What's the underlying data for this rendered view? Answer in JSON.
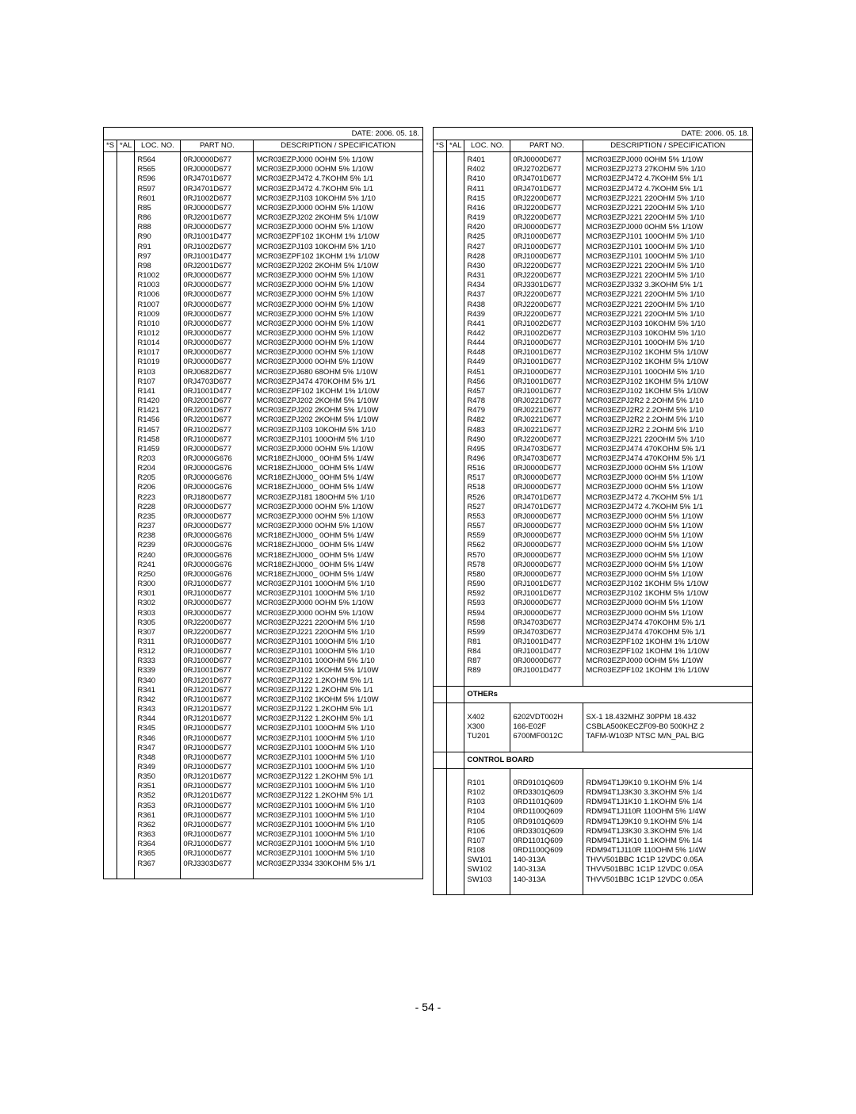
{
  "page_number": "- 54 -",
  "date_label": "DATE: 2006. 05. 18.",
  "headers": {
    "s": "*S",
    "al": "*AL",
    "loc": "LOC. NO.",
    "part": "PART NO.",
    "desc": "DESCRIPTION / SPECIFICATION"
  },
  "styling": {
    "font_family": "Arial",
    "font_size_body_pt": 7,
    "font_size_pagenum_pt": 10,
    "border_color": "#000000",
    "background_color": "#ffffff",
    "text_color": "#000000"
  },
  "left": [
    {
      "loc": "R564",
      "part": "0RJ0000D677",
      "desc": "MCR03EZPJ000 0OHM 5% 1/10W"
    },
    {
      "loc": "R565",
      "part": "0RJ0000D677",
      "desc": "MCR03EZPJ000 0OHM 5% 1/10W"
    },
    {
      "loc": "R596",
      "part": "0RJ4701D677",
      "desc": "MCR03EZPJ472 4.7KOHM 5% 1/1"
    },
    {
      "loc": "R597",
      "part": "0RJ4701D677",
      "desc": "MCR03EZPJ472 4.7KOHM 5% 1/1"
    },
    {
      "loc": "R601",
      "part": "0RJ1002D677",
      "desc": "MCR03EZPJ103 10KOHM 5% 1/10"
    },
    {
      "loc": "R85",
      "part": "0RJ0000D677",
      "desc": "MCR03EZPJ000 0OHM 5% 1/10W"
    },
    {
      "loc": "R86",
      "part": "0RJ2001D677",
      "desc": "MCR03EZPJ202 2KOHM 5% 1/10W"
    },
    {
      "loc": "R88",
      "part": "0RJ0000D677",
      "desc": "MCR03EZPJ000 0OHM 5% 1/10W"
    },
    {
      "loc": "R90",
      "part": "0RJ1001D477",
      "desc": "MCR03EZPF102 1KOHM 1% 1/10W"
    },
    {
      "loc": "R91",
      "part": "0RJ1002D677",
      "desc": "MCR03EZPJ103 10KOHM 5% 1/10"
    },
    {
      "loc": "R97",
      "part": "0RJ1001D477",
      "desc": "MCR03EZPF102 1KOHM 1% 1/10W"
    },
    {
      "loc": "R98",
      "part": "0RJ2001D677",
      "desc": "MCR03EZPJ202 2KOHM 5% 1/10W"
    },
    {
      "loc": "R1002",
      "part": "0RJ0000D677",
      "desc": "MCR03EZPJ000 0OHM 5% 1/10W"
    },
    {
      "loc": "R1003",
      "part": "0RJ0000D677",
      "desc": "MCR03EZPJ000 0OHM 5% 1/10W"
    },
    {
      "loc": "R1006",
      "part": "0RJ0000D677",
      "desc": "MCR03EZPJ000 0OHM 5% 1/10W"
    },
    {
      "loc": "R1007",
      "part": "0RJ0000D677",
      "desc": "MCR03EZPJ000 0OHM 5% 1/10W"
    },
    {
      "loc": "R1009",
      "part": "0RJ0000D677",
      "desc": "MCR03EZPJ000 0OHM 5% 1/10W"
    },
    {
      "loc": "R1010",
      "part": "0RJ0000D677",
      "desc": "MCR03EZPJ000 0OHM 5% 1/10W"
    },
    {
      "loc": "R1012",
      "part": "0RJ0000D677",
      "desc": "MCR03EZPJ000 0OHM 5% 1/10W"
    },
    {
      "loc": "R1014",
      "part": "0RJ0000D677",
      "desc": "MCR03EZPJ000 0OHM 5% 1/10W"
    },
    {
      "loc": "R1017",
      "part": "0RJ0000D677",
      "desc": "MCR03EZPJ000 0OHM 5% 1/10W"
    },
    {
      "loc": "R1019",
      "part": "0RJ0000D677",
      "desc": "MCR03EZPJ000 0OHM 5% 1/10W"
    },
    {
      "loc": "R103",
      "part": "0RJ0682D677",
      "desc": "MCR03EZPJ680 68OHM 5% 1/10W"
    },
    {
      "loc": "R107",
      "part": "0RJ4703D677",
      "desc": "MCR03EZPJ474 470KOHM 5% 1/1"
    },
    {
      "loc": "R141",
      "part": "0RJ1001D477",
      "desc": "MCR03EZPF102 1KOHM 1% 1/10W"
    },
    {
      "loc": "R1420",
      "part": "0RJ2001D677",
      "desc": "MCR03EZPJ202 2KOHM 5% 1/10W"
    },
    {
      "loc": "R1421",
      "part": "0RJ2001D677",
      "desc": "MCR03EZPJ202 2KOHM 5% 1/10W"
    },
    {
      "loc": "R1456",
      "part": "0RJ2001D677",
      "desc": "MCR03EZPJ202 2KOHM 5% 1/10W"
    },
    {
      "loc": "R1457",
      "part": "0RJ1002D677",
      "desc": "MCR03EZPJ103 10KOHM 5% 1/10"
    },
    {
      "loc": "R1458",
      "part": "0RJ1000D677",
      "desc": "MCR03EZPJ101 100OHM 5% 1/10"
    },
    {
      "loc": "R1459",
      "part": "0RJ0000D677",
      "desc": "MCR03EZPJ000 0OHM 5% 1/10W"
    },
    {
      "loc": "R203",
      "part": "0RJ0000G676",
      "desc": "MCR18EZHJ000_ 0OHM 5% 1/4W"
    },
    {
      "loc": "R204",
      "part": "0RJ0000G676",
      "desc": "MCR18EZHJ000_ 0OHM 5% 1/4W"
    },
    {
      "loc": "R205",
      "part": "0RJ0000G676",
      "desc": "MCR18EZHJ000_ 0OHM 5% 1/4W"
    },
    {
      "loc": "R206",
      "part": "0RJ0000G676",
      "desc": "MCR18EZHJ000_ 0OHM 5% 1/4W"
    },
    {
      "loc": "R223",
      "part": "0RJ1800D677",
      "desc": "MCR03EZPJ181 180OHM 5% 1/10"
    },
    {
      "loc": "R228",
      "part": "0RJ0000D677",
      "desc": "MCR03EZPJ000 0OHM 5% 1/10W"
    },
    {
      "loc": "R235",
      "part": "0RJ0000D677",
      "desc": "MCR03EZPJ000 0OHM 5% 1/10W"
    },
    {
      "loc": "R237",
      "part": "0RJ0000D677",
      "desc": "MCR03EZPJ000 0OHM 5% 1/10W"
    },
    {
      "loc": "R238",
      "part": "0RJ0000G676",
      "desc": "MCR18EZHJ000_ 0OHM 5% 1/4W"
    },
    {
      "loc": "R239",
      "part": "0RJ0000G676",
      "desc": "MCR18EZHJ000_ 0OHM 5% 1/4W"
    },
    {
      "loc": "R240",
      "part": "0RJ0000G676",
      "desc": "MCR18EZHJ000_ 0OHM 5% 1/4W"
    },
    {
      "loc": "R241",
      "part": "0RJ0000G676",
      "desc": "MCR18EZHJ000_ 0OHM 5% 1/4W"
    },
    {
      "loc": "R250",
      "part": "0RJ0000G676",
      "desc": "MCR18EZHJ000_ 0OHM 5% 1/4W"
    },
    {
      "loc": "R300",
      "part": "0RJ1000D677",
      "desc": "MCR03EZPJ101 100OHM 5% 1/10"
    },
    {
      "loc": "R301",
      "part": "0RJ1000D677",
      "desc": "MCR03EZPJ101 100OHM 5% 1/10"
    },
    {
      "loc": "R302",
      "part": "0RJ0000D677",
      "desc": "MCR03EZPJ000 0OHM 5% 1/10W"
    },
    {
      "loc": "R303",
      "part": "0RJ0000D677",
      "desc": "MCR03EZPJ000 0OHM 5% 1/10W"
    },
    {
      "loc": "R305",
      "part": "0RJ2200D677",
      "desc": "MCR03EZPJ221 220OHM 5% 1/10"
    },
    {
      "loc": "R307",
      "part": "0RJ2200D677",
      "desc": "MCR03EZPJ221 220OHM 5% 1/10"
    },
    {
      "loc": "R311",
      "part": "0RJ1000D677",
      "desc": "MCR03EZPJ101 100OHM 5% 1/10"
    },
    {
      "loc": "R312",
      "part": "0RJ1000D677",
      "desc": "MCR03EZPJ101 100OHM 5% 1/10"
    },
    {
      "loc": "R333",
      "part": "0RJ1000D677",
      "desc": "MCR03EZPJ101 100OHM 5% 1/10"
    },
    {
      "loc": "R339",
      "part": "0RJ1001D677",
      "desc": "MCR03EZPJ102 1KOHM 5% 1/10W"
    },
    {
      "loc": "R340",
      "part": "0RJ1201D677",
      "desc": "MCR03EZPJ122 1.2KOHM 5% 1/1"
    },
    {
      "loc": "R341",
      "part": "0RJ1201D677",
      "desc": "MCR03EZPJ122 1.2KOHM 5% 1/1"
    },
    {
      "loc": "R342",
      "part": "0RJ1001D677",
      "desc": "MCR03EZPJ102 1KOHM 5% 1/10W"
    },
    {
      "loc": "R343",
      "part": "0RJ1201D677",
      "desc": "MCR03EZPJ122 1.2KOHM 5% 1/1"
    },
    {
      "loc": "R344",
      "part": "0RJ1201D677",
      "desc": "MCR03EZPJ122 1.2KOHM 5% 1/1"
    },
    {
      "loc": "R345",
      "part": "0RJ1000D677",
      "desc": "MCR03EZPJ101 100OHM 5% 1/10"
    },
    {
      "loc": "R346",
      "part": "0RJ1000D677",
      "desc": "MCR03EZPJ101 100OHM 5% 1/10"
    },
    {
      "loc": "R347",
      "part": "0RJ1000D677",
      "desc": "MCR03EZPJ101 100OHM 5% 1/10"
    },
    {
      "loc": "R348",
      "part": "0RJ1000D677",
      "desc": "MCR03EZPJ101 100OHM 5% 1/10"
    },
    {
      "loc": "R349",
      "part": "0RJ1000D677",
      "desc": "MCR03EZPJ101 100OHM 5% 1/10"
    },
    {
      "loc": "R350",
      "part": "0RJ1201D677",
      "desc": "MCR03EZPJ122 1.2KOHM 5% 1/1"
    },
    {
      "loc": "R351",
      "part": "0RJ1000D677",
      "desc": "MCR03EZPJ101 100OHM 5% 1/10"
    },
    {
      "loc": "R352",
      "part": "0RJ1201D677",
      "desc": "MCR03EZPJ122 1.2KOHM 5% 1/1"
    },
    {
      "loc": "R353",
      "part": "0RJ1000D677",
      "desc": "MCR03EZPJ101 100OHM 5% 1/10"
    },
    {
      "loc": "R361",
      "part": "0RJ1000D677",
      "desc": "MCR03EZPJ101 100OHM 5% 1/10"
    },
    {
      "loc": "R362",
      "part": "0RJ1000D677",
      "desc": "MCR03EZPJ101 100OHM 5% 1/10"
    },
    {
      "loc": "R363",
      "part": "0RJ1000D677",
      "desc": "MCR03EZPJ101 100OHM 5% 1/10"
    },
    {
      "loc": "R364",
      "part": "0RJ1000D677",
      "desc": "MCR03EZPJ101 100OHM 5% 1/10"
    },
    {
      "loc": "R365",
      "part": "0RJ1000D677",
      "desc": "MCR03EZPJ101 100OHM 5% 1/10"
    },
    {
      "loc": "R367",
      "part": "0RJ3303D677",
      "desc": "MCR03EZPJ334 330KOHM 5% 1/1"
    }
  ],
  "right": [
    {
      "loc": "R401",
      "part": "0RJ0000D677",
      "desc": "MCR03EZPJ000 0OHM 5% 1/10W"
    },
    {
      "loc": "R402",
      "part": "0RJ2702D677",
      "desc": "MCR03EZPJ273 27KOHM 5% 1/10"
    },
    {
      "loc": "R410",
      "part": "0RJ4701D677",
      "desc": "MCR03EZPJ472 4.7KOHM 5% 1/1"
    },
    {
      "loc": "R411",
      "part": "0RJ4701D677",
      "desc": "MCR03EZPJ472 4.7KOHM 5% 1/1"
    },
    {
      "loc": "R415",
      "part": "0RJ2200D677",
      "desc": "MCR03EZPJ221 220OHM 5% 1/10"
    },
    {
      "loc": "R416",
      "part": "0RJ2200D677",
      "desc": "MCR03EZPJ221 220OHM 5% 1/10"
    },
    {
      "loc": "R419",
      "part": "0RJ2200D677",
      "desc": "MCR03EZPJ221 220OHM 5% 1/10"
    },
    {
      "loc": "R420",
      "part": "0RJ0000D677",
      "desc": "MCR03EZPJ000 0OHM 5% 1/10W"
    },
    {
      "loc": "R425",
      "part": "0RJ1000D677",
      "desc": "MCR03EZPJ101 100OHM 5% 1/10"
    },
    {
      "loc": "R427",
      "part": "0RJ1000D677",
      "desc": "MCR03EZPJ101 100OHM 5% 1/10"
    },
    {
      "loc": "R428",
      "part": "0RJ1000D677",
      "desc": "MCR03EZPJ101 100OHM 5% 1/10"
    },
    {
      "loc": "R430",
      "part": "0RJ2200D677",
      "desc": "MCR03EZPJ221 220OHM 5% 1/10"
    },
    {
      "loc": "R431",
      "part": "0RJ2200D677",
      "desc": "MCR03EZPJ221 220OHM 5% 1/10"
    },
    {
      "loc": "R434",
      "part": "0RJ3301D677",
      "desc": "MCR03EZPJ332 3.3KOHM 5% 1/1"
    },
    {
      "loc": "R437",
      "part": "0RJ2200D677",
      "desc": "MCR03EZPJ221 220OHM 5% 1/10"
    },
    {
      "loc": "R438",
      "part": "0RJ2200D677",
      "desc": "MCR03EZPJ221 220OHM 5% 1/10"
    },
    {
      "loc": "R439",
      "part": "0RJ2200D677",
      "desc": "MCR03EZPJ221 220OHM 5% 1/10"
    },
    {
      "loc": "R441",
      "part": "0RJ1002D677",
      "desc": "MCR03EZPJ103 10KOHM 5% 1/10"
    },
    {
      "loc": "R442",
      "part": "0RJ1002D677",
      "desc": "MCR03EZPJ103 10KOHM 5% 1/10"
    },
    {
      "loc": "R444",
      "part": "0RJ1000D677",
      "desc": "MCR03EZPJ101 100OHM 5% 1/10"
    },
    {
      "loc": "R448",
      "part": "0RJ1001D677",
      "desc": "MCR03EZPJ102 1KOHM 5% 1/10W"
    },
    {
      "loc": "R449",
      "part": "0RJ1001D677",
      "desc": "MCR03EZPJ102 1KOHM 5% 1/10W"
    },
    {
      "loc": "R451",
      "part": "0RJ1000D677",
      "desc": "MCR03EZPJ101 100OHM 5% 1/10"
    },
    {
      "loc": "R456",
      "part": "0RJ1001D677",
      "desc": "MCR03EZPJ102 1KOHM 5% 1/10W"
    },
    {
      "loc": "R457",
      "part": "0RJ1001D677",
      "desc": "MCR03EZPJ102 1KOHM 5% 1/10W"
    },
    {
      "loc": "R478",
      "part": "0RJ0221D677",
      "desc": "MCR03EZPJ2R2 2.2OHM 5% 1/10"
    },
    {
      "loc": "R479",
      "part": "0RJ0221D677",
      "desc": "MCR03EZPJ2R2 2.2OHM 5% 1/10"
    },
    {
      "loc": "R482",
      "part": "0RJ0221D677",
      "desc": "MCR03EZPJ2R2 2.2OHM 5% 1/10"
    },
    {
      "loc": "R483",
      "part": "0RJ0221D677",
      "desc": "MCR03EZPJ2R2 2.2OHM 5% 1/10"
    },
    {
      "loc": "R490",
      "part": "0RJ2200D677",
      "desc": "MCR03EZPJ221 220OHM 5% 1/10"
    },
    {
      "loc": "R495",
      "part": "0RJ4703D677",
      "desc": "MCR03EZPJ474 470KOHM 5% 1/1"
    },
    {
      "loc": "R496",
      "part": "0RJ4703D677",
      "desc": "MCR03EZPJ474 470KOHM 5% 1/1"
    },
    {
      "loc": "R516",
      "part": "0RJ0000D677",
      "desc": "MCR03EZPJ000 0OHM 5% 1/10W"
    },
    {
      "loc": "R517",
      "part": "0RJ0000D677",
      "desc": "MCR03EZPJ000 0OHM 5% 1/10W"
    },
    {
      "loc": "R518",
      "part": "0RJ0000D677",
      "desc": "MCR03EZPJ000 0OHM 5% 1/10W"
    },
    {
      "loc": "R526",
      "part": "0RJ4701D677",
      "desc": "MCR03EZPJ472 4.7KOHM 5% 1/1"
    },
    {
      "loc": "R527",
      "part": "0RJ4701D677",
      "desc": "MCR03EZPJ472 4.7KOHM 5% 1/1"
    },
    {
      "loc": "R553",
      "part": "0RJ0000D677",
      "desc": "MCR03EZPJ000 0OHM 5% 1/10W"
    },
    {
      "loc": "R557",
      "part": "0RJ0000D677",
      "desc": "MCR03EZPJ000 0OHM 5% 1/10W"
    },
    {
      "loc": "R559",
      "part": "0RJ0000D677",
      "desc": "MCR03EZPJ000 0OHM 5% 1/10W"
    },
    {
      "loc": "R562",
      "part": "0RJ0000D677",
      "desc": "MCR03EZPJ000 0OHM 5% 1/10W"
    },
    {
      "loc": "R570",
      "part": "0RJ0000D677",
      "desc": "MCR03EZPJ000 0OHM 5% 1/10W"
    },
    {
      "loc": "R578",
      "part": "0RJ0000D677",
      "desc": "MCR03EZPJ000 0OHM 5% 1/10W"
    },
    {
      "loc": "R580",
      "part": "0RJ0000D677",
      "desc": "MCR03EZPJ000 0OHM 5% 1/10W"
    },
    {
      "loc": "R590",
      "part": "0RJ1001D677",
      "desc": "MCR03EZPJ102 1KOHM 5% 1/10W"
    },
    {
      "loc": "R592",
      "part": "0RJ1001D677",
      "desc": "MCR03EZPJ102 1KOHM 5% 1/10W"
    },
    {
      "loc": "R593",
      "part": "0RJ0000D677",
      "desc": "MCR03EZPJ000 0OHM 5% 1/10W"
    },
    {
      "loc": "R594",
      "part": "0RJ0000D677",
      "desc": "MCR03EZPJ000 0OHM 5% 1/10W"
    },
    {
      "loc": "R598",
      "part": "0RJ4703D677",
      "desc": "MCR03EZPJ474 470KOHM 5% 1/1"
    },
    {
      "loc": "R599",
      "part": "0RJ4703D677",
      "desc": "MCR03EZPJ474 470KOHM 5% 1/1"
    },
    {
      "loc": "R81",
      "part": "0RJ1001D477",
      "desc": "MCR03EZPF102 1KOHM 1% 1/10W"
    },
    {
      "loc": "R84",
      "part": "0RJ1001D477",
      "desc": "MCR03EZPF102 1KOHM 1% 1/10W"
    },
    {
      "loc": "R87",
      "part": "0RJ0000D677",
      "desc": "MCR03EZPJ000 0OHM 5% 1/10W"
    },
    {
      "loc": "R89",
      "part": "0RJ1001D477",
      "desc": "MCR03EZPF102 1KOHM 1% 1/10W"
    },
    {
      "section": "OTHERs"
    },
    {
      "loc": "X402",
      "part": "6202VDT002H",
      "desc": "SX-1 18.432MHZ 30PPM 18.432"
    },
    {
      "loc": "X300",
      "part": "166-E02F",
      "desc": "CSBLA500KECZF09-B0 500KHZ 2"
    },
    {
      "loc": "TU201",
      "part": "6700MF0012C",
      "desc": "TAFM-W103P NTSC M/N_PAL B/G"
    },
    {
      "section": "CONTROL BOARD"
    },
    {
      "loc": "R101",
      "part": "0RD9101Q609",
      "desc": "RDM94T1J9K10 9.1KOHM 5% 1/4"
    },
    {
      "loc": "R102",
      "part": "0RD3301Q609",
      "desc": "RDM94T1J3K30 3.3KOHM 5% 1/4"
    },
    {
      "loc": "R103",
      "part": "0RD1101Q609",
      "desc": "RDM94T1J1K10 1.1KOHM 5% 1/4"
    },
    {
      "loc": "R104",
      "part": "0RD1100Q609",
      "desc": "RDM94T1J110R 110OHM 5% 1/4W"
    },
    {
      "loc": "R105",
      "part": "0RD9101Q609",
      "desc": "RDM94T1J9K10 9.1KOHM 5% 1/4"
    },
    {
      "loc": "R106",
      "part": "0RD3301Q609",
      "desc": "RDM94T1J3K30 3.3KOHM 5% 1/4"
    },
    {
      "loc": "R107",
      "part": "0RD1101Q609",
      "desc": "RDM94T1J1K10 1.1KOHM 5% 1/4"
    },
    {
      "loc": "R108",
      "part": "0RD1100Q609",
      "desc": "RDM94T1J110R 110OHM 5% 1/4W"
    },
    {
      "loc": "SW101",
      "part": "140-313A",
      "desc": "THVV501BBC 1C1P 12VDC 0.05A"
    },
    {
      "loc": "SW102",
      "part": "140-313A",
      "desc": "THVV501BBC 1C1P 12VDC 0.05A"
    },
    {
      "loc": "SW103",
      "part": "140-313A",
      "desc": "THVV501BBC 1C1P 12VDC 0.05A"
    }
  ]
}
